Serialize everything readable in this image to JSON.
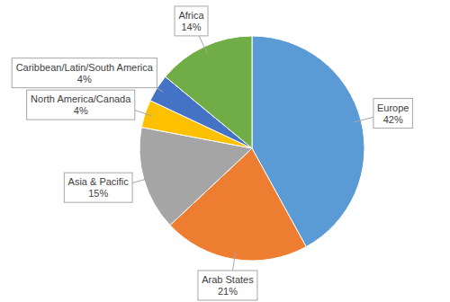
{
  "chart_data": {
    "type": "pie",
    "categories": [
      "Europe",
      "Arab States",
      "Asia & Pacific",
      "North America/Canada",
      "Caribbean/Latin/South America",
      "Africa"
    ],
    "values": [
      42,
      21,
      15,
      4,
      4,
      14
    ],
    "value_labels": [
      "42%",
      "21%",
      "15%",
      "4%",
      "4%",
      "14%"
    ],
    "colors": [
      "#5b9bd5",
      "#ed7d31",
      "#a5a5a5",
      "#ffc000",
      "#4472c4",
      "#70ad47"
    ],
    "data_labels": true
  }
}
